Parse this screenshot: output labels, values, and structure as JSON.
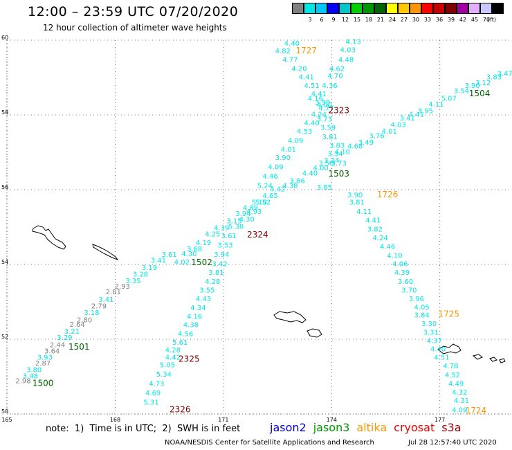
{
  "header": {
    "title": "12:00 – 23:59 UTC 07/20/2020",
    "subtitle": "12 hour collection of altimeter wave heights"
  },
  "color_scale": {
    "unit": "(ft)",
    "bins": [
      {
        "color": "#808080",
        "label": ""
      },
      {
        "color": "#00e6e6",
        "label": "3"
      },
      {
        "color": "#00c8ff",
        "label": "6"
      },
      {
        "color": "#0000ff",
        "label": "9"
      },
      {
        "color": "#00c8c8",
        "label": "12"
      },
      {
        "color": "#00d000",
        "label": "15"
      },
      {
        "color": "#009600",
        "label": "18"
      },
      {
        "color": "#006400",
        "label": "21"
      },
      {
        "color": "#ffff00",
        "label": "24"
      },
      {
        "color": "#ffc800",
        "label": "27"
      },
      {
        "color": "#ff9600",
        "label": "30"
      },
      {
        "color": "#ff0000",
        "label": "33"
      },
      {
        "color": "#c80000",
        "label": "36"
      },
      {
        "color": "#800000",
        "label": "39"
      },
      {
        "color": "#a000a0",
        "label": "42"
      },
      {
        "color": "#e0b0ff",
        "label": "45"
      },
      {
        "color": "#c8c8ff",
        "label": "70"
      },
      {
        "color": "#000000",
        "label": ""
      }
    ]
  },
  "chart_data": {
    "type": "scatter",
    "title": "12:00 – 23:59 UTC 07/20/2020",
    "subtitle": "12 hour collection of altimeter wave heights",
    "xlabel": "",
    "ylabel": "",
    "xlim": [
      165,
      179
    ],
    "ylim": [
      50,
      60
    ],
    "x_ticks": [
      165,
      168,
      171,
      174,
      177
    ],
    "y_ticks": [
      50,
      52,
      54,
      56,
      58,
      60
    ],
    "grid": true,
    "point_color_default": "#00e6e6",
    "tracks": [
      {
        "id": "1500",
        "mission": "jason2",
        "label_color": "#006400",
        "label_lon": 166.0,
        "label_lat": 50.75,
        "points": [
          {
            "lon": 165.45,
            "lat": 50.82,
            "v": "2.98",
            "c": "#808080"
          },
          {
            "lon": 165.65,
            "lat": 50.95,
            "v": "3.48"
          },
          {
            "lon": 165.75,
            "lat": 51.12,
            "v": "3.80"
          },
          {
            "lon": 166.0,
            "lat": 51.3,
            "v": "2.87",
            "c": "#808080"
          },
          {
            "lon": 166.05,
            "lat": 51.45,
            "v": "3.93"
          },
          {
            "lon": 166.25,
            "lat": 51.62,
            "v": "3.64",
            "c": "#808080"
          },
          {
            "lon": 166.4,
            "lat": 51.79,
            "v": "2.44",
            "c": "#808080"
          },
          {
            "lon": 166.6,
            "lat": 51.98,
            "v": "3.29"
          },
          {
            "lon": 166.8,
            "lat": 52.15,
            "v": "3.21"
          },
          {
            "lon": 166.95,
            "lat": 52.33,
            "v": "2.64",
            "c": "#808080"
          },
          {
            "lon": 167.15,
            "lat": 52.45,
            "v": "2.80",
            "c": "#808080"
          },
          {
            "lon": 167.35,
            "lat": 52.65,
            "v": "3.18"
          },
          {
            "lon": 167.55,
            "lat": 52.82,
            "v": "2.79",
            "c": "#808080"
          },
          {
            "lon": 167.75,
            "lat": 53.0,
            "v": "3.41"
          },
          {
            "lon": 167.95,
            "lat": 53.2,
            "v": "2.81",
            "c": "#808080"
          },
          {
            "lon": 168.2,
            "lat": 53.35,
            "v": "2.93",
            "c": "#808080"
          },
          {
            "lon": 168.5,
            "lat": 53.5,
            "v": "3.35"
          },
          {
            "lon": 168.7,
            "lat": 53.68,
            "v": "3.28"
          }
        ]
      },
      {
        "id": "1501",
        "mission": "jason3",
        "label_color": "#006400",
        "label_lon": 167.0,
        "label_lat": 51.72,
        "points": []
      },
      {
        "id": "1502",
        "mission": "jason3",
        "label_color": "#006400",
        "label_lon": 170.4,
        "label_lat": 53.98,
        "points": [
          {
            "lon": 168.95,
            "lat": 53.85,
            "v": "3.19"
          },
          {
            "lon": 169.2,
            "lat": 54.05,
            "v": "3.41"
          },
          {
            "lon": 169.5,
            "lat": 54.2,
            "v": "3.61"
          },
          {
            "lon": 169.85,
            "lat": 54.0,
            "v": "4.02"
          },
          {
            "lon": 170.05,
            "lat": 54.22,
            "v": "4.30"
          },
          {
            "lon": 170.2,
            "lat": 54.35,
            "v": "3.68"
          },
          {
            "lon": 170.45,
            "lat": 54.52,
            "v": "4.19"
          },
          {
            "lon": 170.7,
            "lat": 54.75,
            "v": "4.25"
          },
          {
            "lon": 170.95,
            "lat": 54.92,
            "v": "4.39"
          },
          {
            "lon": 171.3,
            "lat": 55.1,
            "v": "3.15"
          },
          {
            "lon": 171.55,
            "lat": 55.3,
            "v": "3.94"
          },
          {
            "lon": 171.75,
            "lat": 55.45,
            "v": "4.89"
          },
          {
            "lon": 172.0,
            "lat": 55.6,
            "v": "5.10"
          },
          {
            "lon": 172.3,
            "lat": 55.78,
            "v": "4.65"
          },
          {
            "lon": 172.5,
            "lat": 55.95,
            "v": "4.42"
          },
          {
            "lon": 172.85,
            "lat": 56.05,
            "v": "4.38"
          },
          {
            "lon": 173.05,
            "lat": 56.18,
            "v": "3.86"
          },
          {
            "lon": 173.4,
            "lat": 56.38,
            "v": "4.40"
          },
          {
            "lon": 173.7,
            "lat": 56.52,
            "v": "4.00"
          },
          {
            "lon": 174.0,
            "lat": 56.72,
            "v": "3.24"
          },
          {
            "lon": 174.3,
            "lat": 56.95,
            "v": "4.10"
          },
          {
            "lon": 174.65,
            "lat": 57.1,
            "v": "4.68"
          },
          {
            "lon": 174.95,
            "lat": 57.2,
            "v": "3.49"
          },
          {
            "lon": 175.25,
            "lat": 57.38,
            "v": "3.76"
          },
          {
            "lon": 175.6,
            "lat": 57.5,
            "v": "4.01"
          },
          {
            "lon": 175.85,
            "lat": 57.68,
            "v": "4.03"
          },
          {
            "lon": 176.1,
            "lat": 57.85,
            "v": "3.41"
          },
          {
            "lon": 176.35,
            "lat": 57.95,
            "v": "4.41"
          },
          {
            "lon": 176.6,
            "lat": 58.05,
            "v": "3.95"
          },
          {
            "lon": 176.9,
            "lat": 58.22,
            "v": "4.11"
          },
          {
            "lon": 177.25,
            "lat": 58.38,
            "v": "5.07"
          },
          {
            "lon": 177.6,
            "lat": 58.58,
            "v": "3.54"
          },
          {
            "lon": 177.9,
            "lat": 58.72,
            "v": "3.90"
          },
          {
            "lon": 178.2,
            "lat": 58.8,
            "v": "3.12"
          },
          {
            "lon": 178.5,
            "lat": 58.95,
            "v": "3.83"
          },
          {
            "lon": 178.8,
            "lat": 59.05,
            "v": "3.47"
          }
        ]
      },
      {
        "id": "1503",
        "mission": "jason3",
        "label_color": "#006400",
        "label_lon": 174.2,
        "label_lat": 56.35,
        "points": []
      },
      {
        "id": "1504",
        "mission": "jason3",
        "label_color": "#006400",
        "label_lon": 178.1,
        "label_lat": 58.5,
        "points": []
      },
      {
        "id": "1724",
        "mission": "altika",
        "label_color": "#ff9600",
        "label_lon": 178.0,
        "label_lat": 50.02,
        "points": []
      },
      {
        "id": "1725",
        "mission": "altika",
        "label_color": "#ff9600",
        "label_lon": 177.25,
        "label_lat": 52.6,
        "points": [
          {
            "lon": 173.8,
            "lat": 56.0,
            "v": "3.85"
          },
          {
            "lon": 174.65,
            "lat": 55.8,
            "v": "3.90"
          },
          {
            "lon": 174.7,
            "lat": 55.6,
            "v": "3.81"
          },
          {
            "lon": 174.9,
            "lat": 55.35,
            "v": "4.11"
          },
          {
            "lon": 175.15,
            "lat": 55.12,
            "v": "4.41"
          },
          {
            "lon": 175.2,
            "lat": 54.88,
            "v": "3.82"
          },
          {
            "lon": 175.35,
            "lat": 54.65,
            "v": "4.24"
          },
          {
            "lon": 175.55,
            "lat": 54.42,
            "v": "4.46"
          },
          {
            "lon": 175.75,
            "lat": 54.18,
            "v": "4.10"
          },
          {
            "lon": 175.9,
            "lat": 53.95,
            "v": "4.06"
          },
          {
            "lon": 175.95,
            "lat": 53.72,
            "v": "4.39"
          },
          {
            "lon": 176.05,
            "lat": 53.48,
            "v": "3.60"
          },
          {
            "lon": 176.15,
            "lat": 53.25,
            "v": "3.70"
          },
          {
            "lon": 176.35,
            "lat": 53.02,
            "v": "3.96"
          },
          {
            "lon": 176.5,
            "lat": 52.8,
            "v": "4.05"
          },
          {
            "lon": 176.5,
            "lat": 52.58,
            "v": "3.84"
          },
          {
            "lon": 176.7,
            "lat": 52.35,
            "v": "3.30"
          },
          {
            "lon": 176.75,
            "lat": 52.12,
            "v": "3.31"
          },
          {
            "lon": 176.85,
            "lat": 51.9,
            "v": "4.37"
          },
          {
            "lon": 176.95,
            "lat": 51.68,
            "v": "4.40"
          },
          {
            "lon": 177.05,
            "lat": 51.45,
            "v": "4.51"
          },
          {
            "lon": 177.3,
            "lat": 51.22,
            "v": "4.78"
          },
          {
            "lon": 177.35,
            "lat": 50.98,
            "v": "4.52"
          },
          {
            "lon": 177.45,
            "lat": 50.75,
            "v": "4.49"
          },
          {
            "lon": 177.55,
            "lat": 50.52,
            "v": "4.32"
          },
          {
            "lon": 177.6,
            "lat": 50.3,
            "v": "4.31"
          },
          {
            "lon": 177.55,
            "lat": 50.05,
            "v": "4.09"
          }
        ]
      },
      {
        "id": "1726",
        "mission": "altika",
        "label_color": "#ff9600",
        "label_lon": 175.55,
        "label_lat": 55.8,
        "points": []
      },
      {
        "id": "1727",
        "mission": "altika",
        "label_color": "#ff9600",
        "label_lon": 173.3,
        "label_lat": 59.65,
        "points": [
          {
            "lon": 172.9,
            "lat": 59.85,
            "v": "4.40"
          },
          {
            "lon": 172.65,
            "lat": 59.65,
            "v": "4.82"
          },
          {
            "lon": 172.85,
            "lat": 59.42,
            "v": "4.77"
          },
          {
            "lon": 173.1,
            "lat": 59.18,
            "v": "4.20"
          },
          {
            "lon": 173.3,
            "lat": 58.95,
            "v": "4.41"
          },
          {
            "lon": 173.45,
            "lat": 58.72,
            "v": "4.51"
          },
          {
            "lon": 173.65,
            "lat": 58.5,
            "v": "4.41"
          },
          {
            "lon": 173.55,
            "lat": 58.38,
            "v": "4.16"
          },
          {
            "lon": 173.75,
            "lat": 58.28,
            "v": "3.99"
          },
          {
            "lon": 173.85,
            "lat": 58.12,
            "v": "4.77"
          },
          {
            "lon": 173.65,
            "lat": 57.95,
            "v": "4.24"
          },
          {
            "lon": 173.45,
            "lat": 57.72,
            "v": "4.40"
          },
          {
            "lon": 173.25,
            "lat": 57.5,
            "v": "4.53"
          },
          {
            "lon": 173.0,
            "lat": 57.25,
            "v": "4.09"
          },
          {
            "lon": 172.8,
            "lat": 57.02,
            "v": "4.01"
          },
          {
            "lon": 172.65,
            "lat": 56.8,
            "v": "3.90"
          },
          {
            "lon": 172.45,
            "lat": 56.55,
            "v": "4.09"
          },
          {
            "lon": 172.3,
            "lat": 56.3,
            "v": "4.46"
          },
          {
            "lon": 172.15,
            "lat": 56.05,
            "v": "5.24"
          },
          {
            "lon": 172.1,
            "lat": 55.6,
            "v": "5.52"
          },
          {
            "lon": 171.85,
            "lat": 55.35,
            "v": "4.93"
          },
          {
            "lon": 171.65,
            "lat": 55.15,
            "v": "4.30"
          },
          {
            "lon": 171.35,
            "lat": 54.95,
            "v": "5.38"
          },
          {
            "lon": 171.15,
            "lat": 54.7,
            "v": "3.61"
          },
          {
            "lon": 171.05,
            "lat": 54.45,
            "v": "3.53"
          },
          {
            "lon": 170.95,
            "lat": 54.2,
            "v": "3.94"
          },
          {
            "lon": 170.9,
            "lat": 53.95,
            "v": "3.42"
          },
          {
            "lon": 170.8,
            "lat": 53.72,
            "v": "3.81"
          },
          {
            "lon": 170.7,
            "lat": 53.48,
            "v": "4.28"
          },
          {
            "lon": 170.55,
            "lat": 53.25,
            "v": "3.55"
          },
          {
            "lon": 170.45,
            "lat": 53.02,
            "v": "4.43"
          },
          {
            "lon": 170.3,
            "lat": 52.78,
            "v": "4.34"
          },
          {
            "lon": 170.2,
            "lat": 52.55,
            "v": "4.16"
          },
          {
            "lon": 170.1,
            "lat": 52.32,
            "v": "4.38"
          },
          {
            "lon": 169.95,
            "lat": 52.08,
            "v": "4.56"
          },
          {
            "lon": 169.8,
            "lat": 51.85,
            "v": "5.61"
          },
          {
            "lon": 169.6,
            "lat": 51.65,
            "v": "4.28"
          },
          {
            "lon": 169.6,
            "lat": 51.45,
            "v": "4.42"
          },
          {
            "lon": 169.45,
            "lat": 51.25,
            "v": "5.05"
          },
          {
            "lon": 169.35,
            "lat": 51.0,
            "v": "5.34"
          },
          {
            "lon": 169.15,
            "lat": 50.75,
            "v": "4.73"
          },
          {
            "lon": 169.05,
            "lat": 50.5,
            "v": "4.69"
          },
          {
            "lon": 169.0,
            "lat": 50.25,
            "v": "5.31"
          }
        ]
      },
      {
        "id": "2323",
        "mission": "cryosat",
        "label_color": "#800000",
        "label_lon": 174.2,
        "label_lat": 58.05,
        "points": [
          {
            "lon": 174.6,
            "lat": 59.9,
            "v": "4.13"
          },
          {
            "lon": 174.45,
            "lat": 59.68,
            "v": "4.03"
          },
          {
            "lon": 174.4,
            "lat": 59.42,
            "v": "4.48"
          },
          {
            "lon": 174.15,
            "lat": 59.18,
            "v": "4.62"
          },
          {
            "lon": 174.1,
            "lat": 58.98,
            "v": "4.70"
          },
          {
            "lon": 173.95,
            "lat": 58.72,
            "v": "4.36"
          },
          {
            "lon": 173.8,
            "lat": 58.2,
            "v": "4.00"
          },
          {
            "lon": 173.8,
            "lat": 57.82,
            "v": "3.73"
          },
          {
            "lon": 173.9,
            "lat": 57.6,
            "v": "3.59"
          },
          {
            "lon": 173.95,
            "lat": 57.35,
            "v": "3.81"
          },
          {
            "lon": 174.15,
            "lat": 57.12,
            "v": "3.83"
          },
          {
            "lon": 174.1,
            "lat": 56.9,
            "v": "3.34"
          },
          {
            "lon": 173.85,
            "lat": 56.65,
            "v": "3.50"
          },
          {
            "lon": 174.2,
            "lat": 56.65,
            "v": "3.73"
          }
        ]
      },
      {
        "id": "2324",
        "mission": "cryosat",
        "label_color": "#800000",
        "label_lon": 171.95,
        "label_lat": 54.72,
        "points": []
      },
      {
        "id": "2325",
        "mission": "cryosat",
        "label_color": "#800000",
        "label_lon": 170.05,
        "label_lat": 51.4,
        "points": []
      },
      {
        "id": "2326",
        "mission": "cryosat",
        "label_color": "#800000",
        "label_lon": 169.8,
        "label_lat": 50.05,
        "points": []
      }
    ]
  },
  "footer": {
    "note": "note:  1)  Time is in UTC;  2)  SWH is in feet",
    "missions": [
      {
        "name": "jason2",
        "color": "#0000dd"
      },
      {
        "name": "jason3",
        "color": "#009600"
      },
      {
        "name": "altika",
        "color": "#ff9600"
      },
      {
        "name": "cryosat",
        "color": "#ee0000"
      },
      {
        "name": "s3a",
        "color": "#aa0000"
      }
    ],
    "credit": "NOAA/NESDIS Center for Satellite Applications and Research",
    "timestamp": "Jul 28 12:57:40 UTC 2020"
  }
}
